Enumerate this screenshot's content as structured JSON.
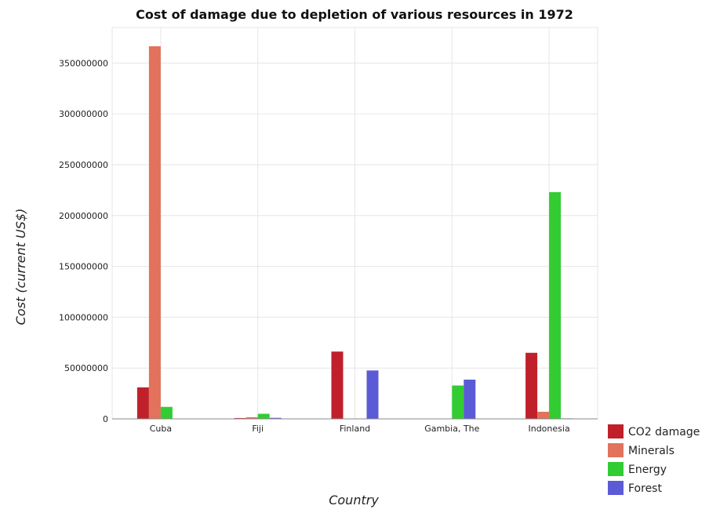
{
  "chart_data": {
    "type": "bar",
    "title": "Cost of damage due to depletion of various resources in 1972",
    "xlabel": "Country",
    "ylabel": "Cost (current US$)",
    "categories": [
      "Cuba",
      "Fiji",
      "Finland",
      "Gambia, The",
      "Indonesia"
    ],
    "ylim": [
      0,
      385000000
    ],
    "yticks": [
      0,
      50000000,
      100000000,
      150000000,
      200000000,
      250000000,
      300000000,
      350000000
    ],
    "ytick_labels": [
      "0",
      "50000000",
      "100000000",
      "150000000",
      "200000000",
      "250000000",
      "300000000",
      "350000000"
    ],
    "legend_position": "bottom-right",
    "series": [
      {
        "name": "CO2 damage",
        "color": "#c0202a",
        "values": [
          31000000,
          800000,
          66200000,
          30000,
          65000000
        ]
      },
      {
        "name": "Minerals",
        "color": "#e2725b",
        "values": [
          366500000,
          1600000,
          50000,
          10000,
          7000000
        ]
      },
      {
        "name": "Energy",
        "color": "#33cc33",
        "values": [
          11800000,
          5000000,
          400000,
          32800000,
          223000000
        ]
      },
      {
        "name": "Forest",
        "color": "#5b5bd6",
        "values": [
          20000,
          1000000,
          47600000,
          38600000,
          500000
        ]
      }
    ]
  }
}
